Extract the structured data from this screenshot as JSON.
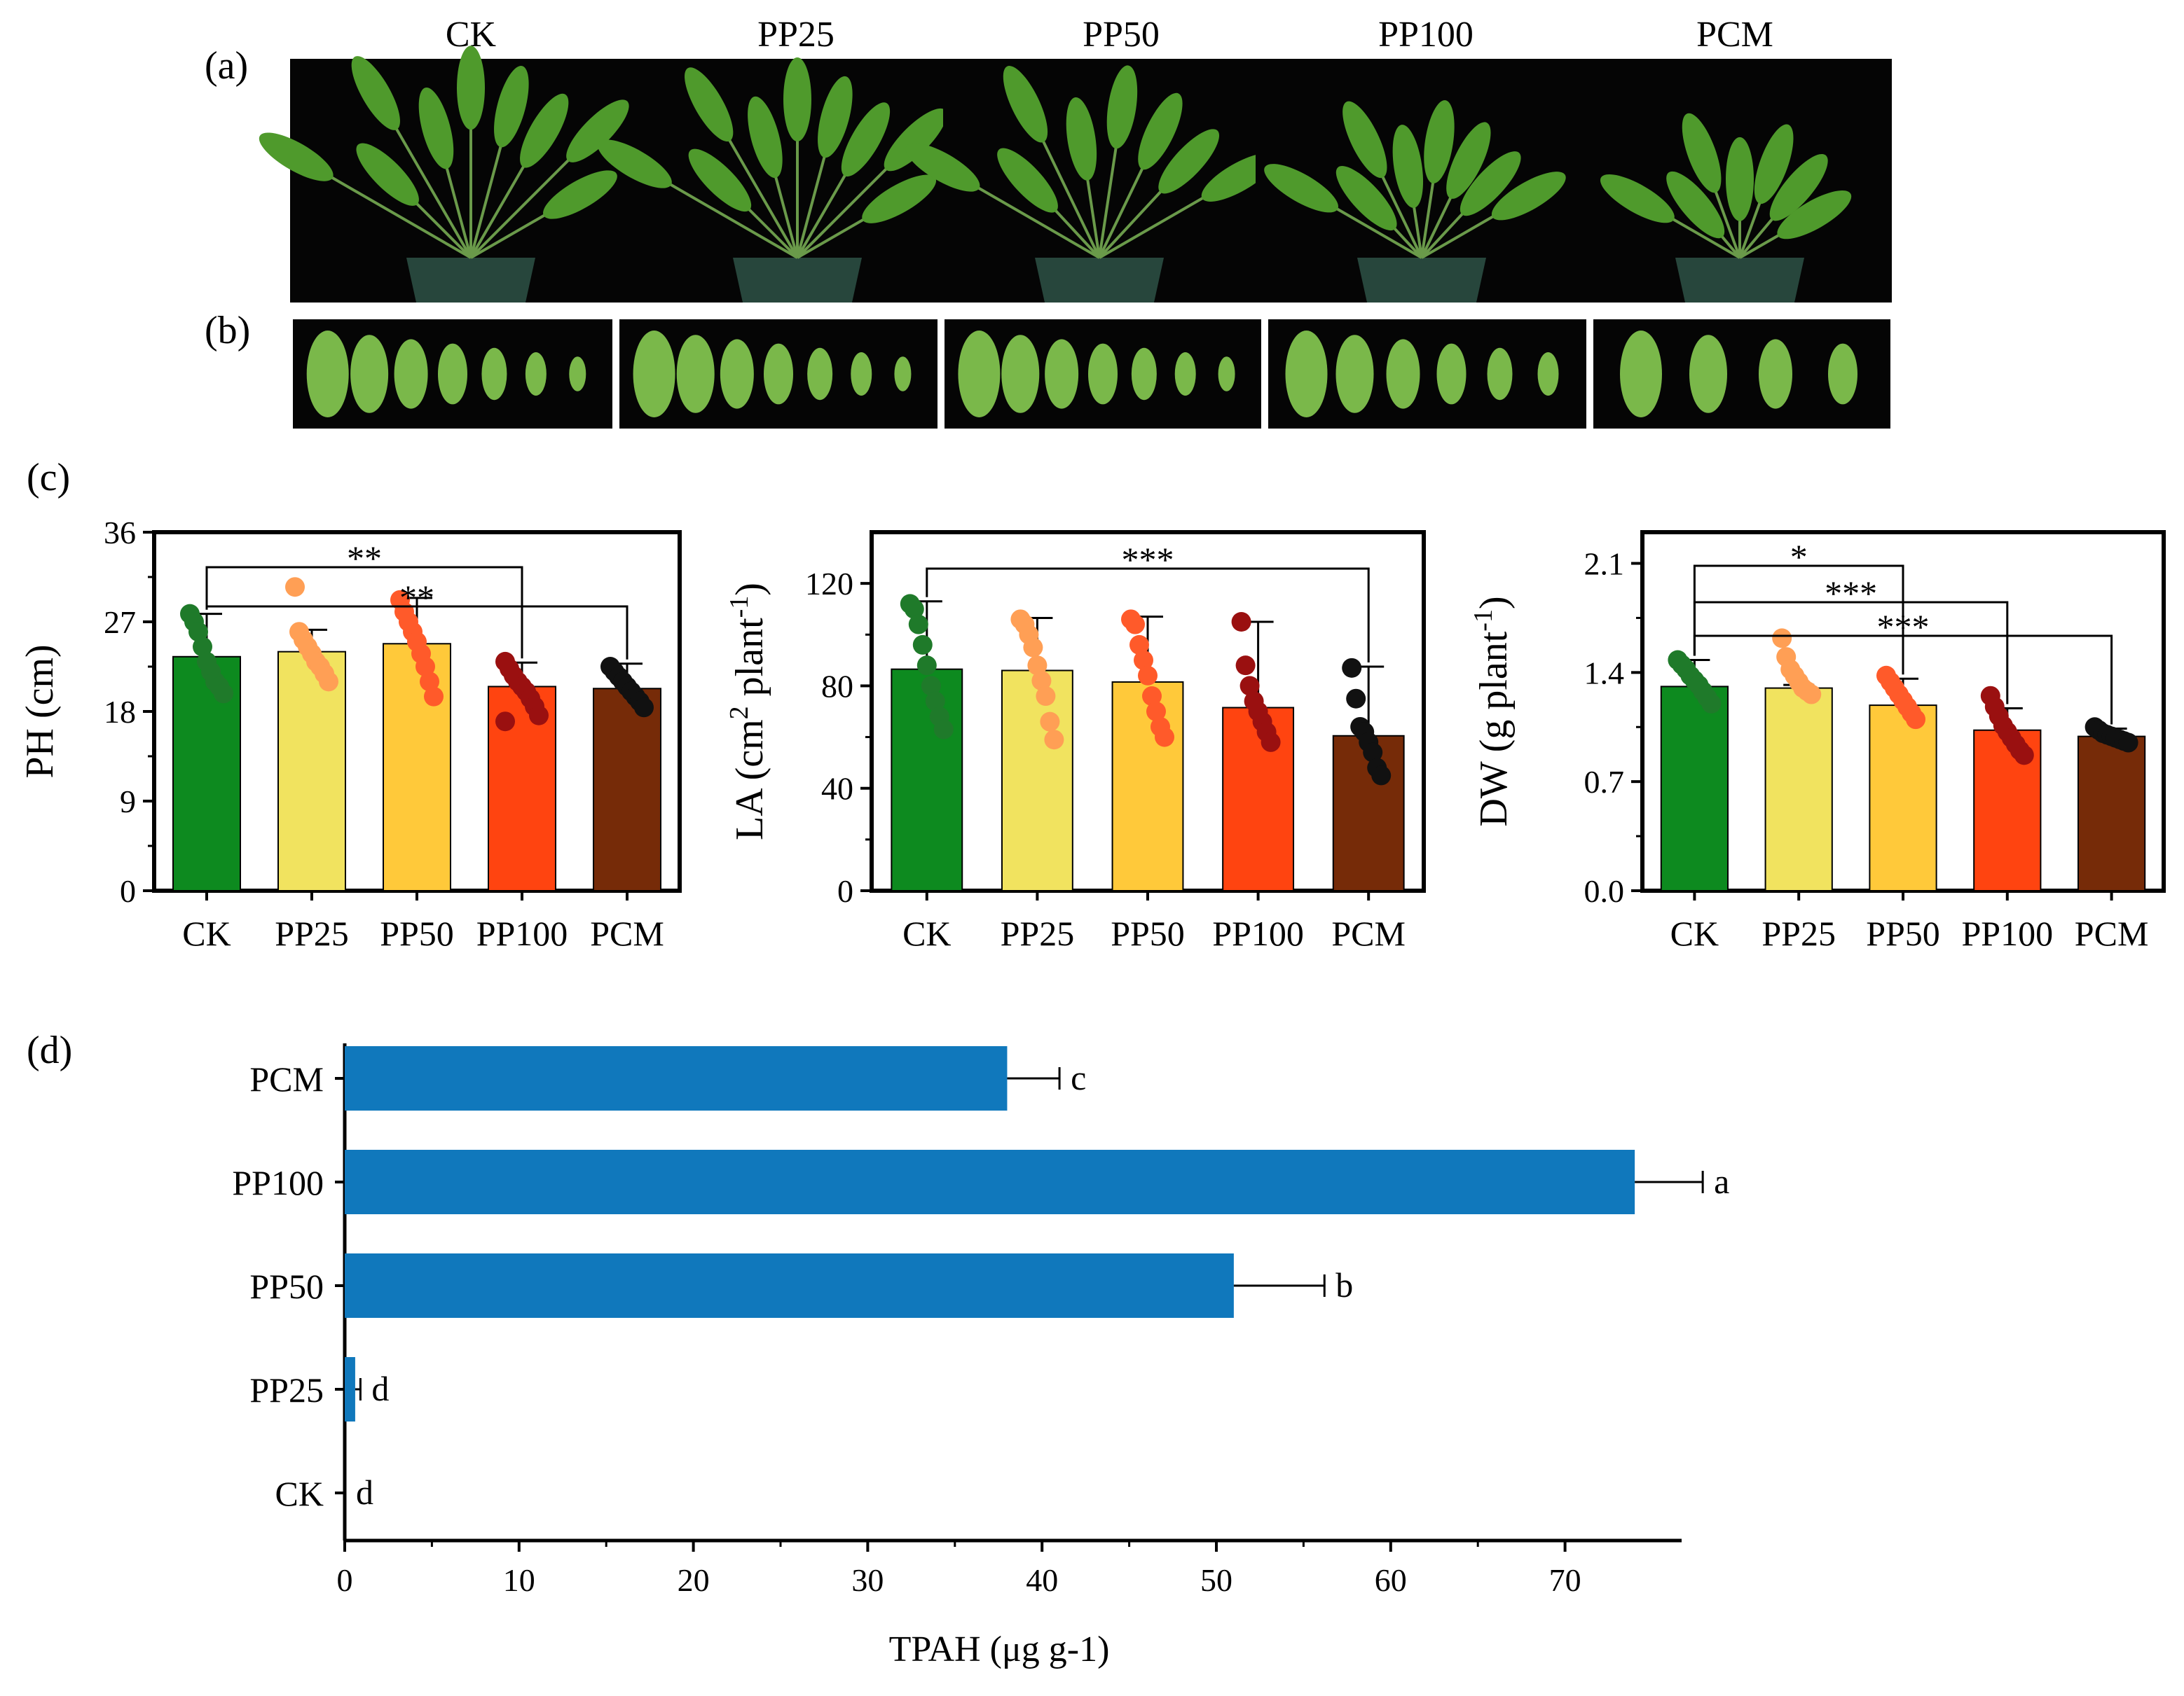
{
  "panel_labels": [
    "(a)",
    "(b)",
    "(c)",
    "(d)"
  ],
  "treatments": [
    "CK",
    "PP25",
    "PP50",
    "PP100",
    "PCM"
  ],
  "colors": {
    "CK": "#0d8a1f",
    "PP25": "#f1e35f",
    "PP50": "#ffc93a",
    "PP100": "#ff4410",
    "PCM": "#762b08",
    "point_CK": "#1f7a2a",
    "point_PP25": "#ff9f55",
    "point_PP50": "#ff5a2a",
    "point_PP100": "#9a1010",
    "point_PCM": "#111111",
    "tpah_bar": "#1078bc",
    "photo_bg": "#050505",
    "leaf": "#4f9a2c",
    "pot": "#27463c"
  },
  "photos": {
    "row_a": [
      "plant-photo",
      "plant-photo",
      "plant-photo",
      "plant-photo",
      "plant-photo"
    ],
    "row_b_leaf_counts": [
      7,
      7,
      7,
      6,
      4
    ]
  },
  "chart_data": [
    {
      "type": "bar",
      "id": "PH",
      "categories": [
        "CK",
        "PP25",
        "PP50",
        "PP100",
        "PCM"
      ],
      "values": [
        23.5,
        24.0,
        24.8,
        20.5,
        20.3
      ],
      "errors": [
        4.3,
        2.2,
        4.6,
        2.4,
        2.5
      ],
      "points": [
        [
          27.8,
          27.0,
          26.0,
          24.5,
          23.0,
          22.0,
          21.0,
          20.5,
          19.8
        ],
        [
          30.5,
          26.0,
          25.2,
          24.5,
          23.8,
          23.0,
          22.5,
          21.8,
          21.0
        ],
        [
          29.2,
          28.0,
          27.0,
          26.0,
          25.0,
          23.8,
          22.5,
          21.0,
          19.5
        ],
        [
          23.0,
          22.3,
          21.6,
          21.0,
          20.5,
          20.0,
          19.3,
          18.5,
          17.6,
          17.0
        ],
        [
          22.5,
          22.0,
          21.5,
          21.0,
          20.5,
          20.0,
          19.5,
          19.0,
          18.4
        ]
      ],
      "xlabel": "",
      "ylabel": "PH (cm)",
      "ylim": [
        0,
        36
      ],
      "yticks": [
        "0",
        "9",
        "18",
        "27",
        "36"
      ],
      "significance": [
        {
          "from": "CK",
          "to": "PP100",
          "label": "**"
        },
        {
          "from": "CK",
          "to": "PCM",
          "label": "**"
        }
      ]
    },
    {
      "type": "bar",
      "id": "LA",
      "categories": [
        "CK",
        "PP25",
        "PP50",
        "PP100",
        "PCM"
      ],
      "values": [
        86.5,
        86.0,
        81.5,
        71.5,
        60.5
      ],
      "errors": [
        26.5,
        20.5,
        25.5,
        33.5,
        27.0
      ],
      "points": [
        [
          112.0,
          110.0,
          104.0,
          96.0,
          88.0,
          80.0,
          74.0,
          68.0,
          63.0
        ],
        [
          106.0,
          104.0,
          100.0,
          95.0,
          88.0,
          82.0,
          76.0,
          66.0,
          59.0
        ],
        [
          106.0,
          104.0,
          96.0,
          90.0,
          84.0,
          76.0,
          70.0,
          64.0,
          60.0
        ],
        [
          105.0,
          88.0,
          80.0,
          74.0,
          70.0,
          66.0,
          62.0,
          58.0
        ],
        [
          87.0,
          75.0,
          64.0,
          62.0,
          58.0,
          54.0,
          48.0,
          45.0
        ]
      ],
      "xlabel": "",
      "ylabel": "LA (cm2 plant-1)",
      "ylim": [
        0,
        140
      ],
      "yticks": [
        "0",
        "40",
        "80",
        "120"
      ],
      "significance": [
        {
          "from": "CK",
          "to": "PCM",
          "label": "***"
        }
      ]
    },
    {
      "type": "bar",
      "id": "DW",
      "categories": [
        "CK",
        "PP25",
        "PP50",
        "PP100",
        "PCM"
      ],
      "values": [
        1.31,
        1.3,
        1.19,
        1.03,
        0.99
      ],
      "errors": [
        0.17,
        0.02,
        0.17,
        0.14,
        0.05
      ],
      "points": [
        [
          1.48,
          1.45,
          1.42,
          1.38,
          1.35,
          1.32,
          1.28,
          1.24,
          1.2
        ],
        [
          1.62,
          1.5,
          1.42,
          1.38,
          1.34,
          1.3,
          1.28,
          1.26
        ],
        [
          1.38,
          1.34,
          1.3,
          1.26,
          1.22,
          1.18,
          1.14,
          1.1
        ],
        [
          1.25,
          1.18,
          1.12,
          1.06,
          1.02,
          0.98,
          0.94,
          0.9,
          0.87
        ],
        [
          1.05,
          1.03,
          1.01,
          1.0,
          0.99,
          0.98,
          0.97,
          0.96,
          0.95
        ]
      ],
      "xlabel": "",
      "ylabel": "DW (g plant-1)",
      "ylim": [
        0,
        2.3
      ],
      "yticks": [
        "0.0",
        "0.7",
        "1.4",
        "2.1"
      ],
      "significance": [
        {
          "from": "CK",
          "to": "PP50",
          "label": "*"
        },
        {
          "from": "CK",
          "to": "PP100",
          "label": "***"
        },
        {
          "from": "CK",
          "to": "PCM",
          "label": "***"
        }
      ]
    },
    {
      "type": "bar",
      "id": "TPAH",
      "orientation": "horizontal",
      "categories": [
        "CK",
        "PP25",
        "PP50",
        "PP100",
        "PCM"
      ],
      "values": [
        0,
        0.6,
        51.0,
        74.0,
        38.0
      ],
      "errors": [
        0,
        0.3,
        5.2,
        3.9,
        3.0
      ],
      "letters": [
        "d",
        "d",
        "b",
        "a",
        "c"
      ],
      "xlabel": "TPAH (μg g-1)",
      "ylabel": "",
      "xlim": [
        0,
        75
      ],
      "xticks": [
        "0",
        "10",
        "20",
        "30",
        "40",
        "50",
        "60",
        "70"
      ]
    }
  ]
}
